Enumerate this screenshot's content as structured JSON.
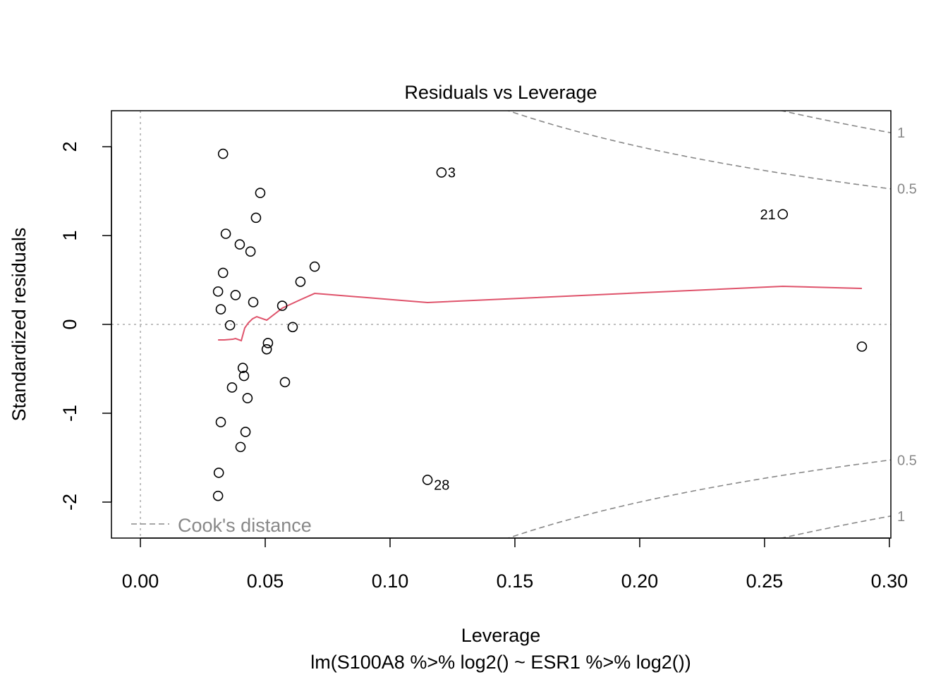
{
  "chart_data": {
    "type": "scatter",
    "title": "Residuals vs Leverage",
    "xlabel": "Leverage",
    "subtitle": "lm(S100A8 %>% log2() ~ ESR1 %>% log2())",
    "ylabel": "Standardized residuals",
    "xlim": [
      -0.0116,
      0.3006
    ],
    "ylim": [
      -2.405,
      2.405
    ],
    "xticks": [
      "0.00",
      "0.05",
      "0.10",
      "0.15",
      "0.20",
      "0.25",
      "0.30"
    ],
    "xtick_values": [
      0,
      0.05,
      0.1,
      0.15,
      0.2,
      0.25,
      0.3
    ],
    "yticks": [
      "-2",
      "-1",
      "0",
      "1",
      "2"
    ],
    "ytick_values": [
      -2,
      -1,
      0,
      1,
      2
    ],
    "grid": false,
    "points": [
      {
        "x": 0.0331,
        "y": 1.92
      },
      {
        "x": 0.1206,
        "y": 1.71,
        "label": "3"
      },
      {
        "x": 0.048,
        "y": 1.48
      },
      {
        "x": 0.0463,
        "y": 1.2
      },
      {
        "x": 0.2573,
        "y": 1.24,
        "label": "21"
      },
      {
        "x": 0.0342,
        "y": 1.02
      },
      {
        "x": 0.0398,
        "y": 0.9
      },
      {
        "x": 0.0441,
        "y": 0.82
      },
      {
        "x": 0.0698,
        "y": 0.65
      },
      {
        "x": 0.0331,
        "y": 0.58
      },
      {
        "x": 0.0641,
        "y": 0.48
      },
      {
        "x": 0.0311,
        "y": 0.37
      },
      {
        "x": 0.0381,
        "y": 0.33
      },
      {
        "x": 0.0452,
        "y": 0.25
      },
      {
        "x": 0.0322,
        "y": 0.17
      },
      {
        "x": 0.0568,
        "y": 0.21
      },
      {
        "x": 0.0359,
        "y": -0.01
      },
      {
        "x": 0.061,
        "y": -0.03
      },
      {
        "x": 0.0511,
        "y": -0.21
      },
      {
        "x": 0.0506,
        "y": -0.28
      },
      {
        "x": 0.289,
        "y": -0.25
      },
      {
        "x": 0.041,
        "y": -0.49
      },
      {
        "x": 0.0415,
        "y": -0.58
      },
      {
        "x": 0.0367,
        "y": -0.71
      },
      {
        "x": 0.0579,
        "y": -0.65
      },
      {
        "x": 0.0429,
        "y": -0.83
      },
      {
        "x": 0.0322,
        "y": -1.1
      },
      {
        "x": 0.0421,
        "y": -1.21
      },
      {
        "x": 0.0401,
        "y": -1.38
      },
      {
        "x": 0.115,
        "y": -1.75,
        "label": "28"
      },
      {
        "x": 0.0314,
        "y": -1.67
      },
      {
        "x": 0.0311,
        "y": -1.93
      }
    ],
    "smooth_line": {
      "color": "#DF536B",
      "x": [
        0.0311,
        0.0336,
        0.037,
        0.0381,
        0.0404,
        0.0418,
        0.0432,
        0.0449,
        0.0466,
        0.0506,
        0.0568,
        0.0641,
        0.0698,
        0.115,
        0.2573,
        0.289
      ],
      "y": [
        -0.175,
        -0.175,
        -0.167,
        -0.159,
        -0.183,
        -0.04,
        0.016,
        0.063,
        0.087,
        0.048,
        0.183,
        0.278,
        0.349,
        0.246,
        0.429,
        0.405
      ]
    },
    "cooks_distance": {
      "legend": "Cook's distance",
      "legend_placement": "bottom-left",
      "levels": [
        0.5,
        1
      ],
      "level_labels": [
        "0.5",
        "1"
      ],
      "n_params": 2,
      "color": "#888888"
    }
  }
}
